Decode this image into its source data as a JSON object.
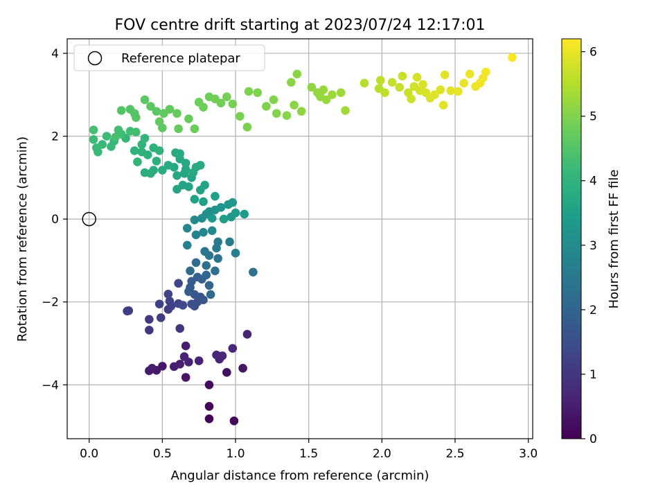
{
  "chart_data": {
    "type": "scatter",
    "title": "FOV centre drift starting at 2023/07/24 12:17:01",
    "xlabel": "Angular distance from reference (arcmin)",
    "ylabel": "Rotation from reference (arcmin)",
    "xlim": [
      -0.15,
      3.03
    ],
    "ylim": [
      -5.3,
      4.35
    ],
    "xticks": [
      0.0,
      0.5,
      1.0,
      1.5,
      2.0,
      2.5,
      3.0
    ],
    "xtick_labels": [
      "0.0",
      "0.5",
      "1.0",
      "1.5",
      "2.0",
      "2.5",
      "3.0"
    ],
    "yticks": [
      -4,
      -2,
      0,
      2,
      4
    ],
    "ytick_labels": [
      "−4",
      "−2",
      "0",
      "2",
      "4"
    ],
    "grid": true,
    "legend": {
      "placement": "top-left",
      "entries": [
        "Reference platepar"
      ]
    },
    "reference_point": {
      "x": 0.0,
      "y": 0.0
    },
    "colorbar": {
      "label": "Hours from first FF file",
      "range": [
        0,
        6.2
      ],
      "ticks": [
        0,
        1,
        2,
        3,
        4,
        5,
        6
      ],
      "tick_labels": [
        "0",
        "1",
        "2",
        "3",
        "4",
        "5",
        "6"
      ],
      "colormap": "viridis"
    },
    "colormap_stops": [
      "#440154",
      "#482878",
      "#3e4989",
      "#31688e",
      "#26828e",
      "#1f9e89",
      "#35b779",
      "#6ece58",
      "#b5de2b",
      "#fde725"
    ],
    "points": [
      [
        0.82,
        -4.82,
        0.05
      ],
      [
        0.82,
        -4.52,
        0.08
      ],
      [
        0.99,
        -4.87,
        0.12
      ],
      [
        0.82,
        -4.0,
        0.2
      ],
      [
        0.94,
        -3.7,
        0.25
      ],
      [
        1.05,
        -3.6,
        0.3
      ],
      [
        0.66,
        -3.82,
        0.35
      ],
      [
        0.5,
        -3.55,
        0.4
      ],
      [
        0.46,
        -3.65,
        0.42
      ],
      [
        0.41,
        -3.66,
        0.45
      ],
      [
        0.43,
        -3.6,
        0.5
      ],
      [
        0.58,
        -3.56,
        0.5
      ],
      [
        0.62,
        -3.5,
        0.55
      ],
      [
        0.68,
        -3.45,
        0.58
      ],
      [
        0.75,
        -3.42,
        0.6
      ],
      [
        0.65,
        -3.32,
        0.62
      ],
      [
        0.89,
        -3.38,
        0.65
      ],
      [
        0.87,
        -3.28,
        0.68
      ],
      [
        0.91,
        -3.3,
        0.7
      ],
      [
        0.98,
        -3.12,
        0.72
      ],
      [
        1.08,
        -2.78,
        0.6
      ],
      [
        0.66,
        -3.06,
        0.5
      ],
      [
        0.41,
        -2.68,
        1.0
      ],
      [
        0.62,
        -2.64,
        1.0
      ],
      [
        0.41,
        -2.42,
        1.05
      ],
      [
        0.49,
        -2.38,
        1.1
      ],
      [
        0.26,
        -2.22,
        1.1
      ],
      [
        0.27,
        -2.21,
        1.12
      ],
      [
        0.54,
        -2.18,
        1.15
      ],
      [
        0.56,
        -2.1,
        1.2
      ],
      [
        0.48,
        -2.05,
        1.22
      ],
      [
        0.55,
        -1.98,
        1.25
      ],
      [
        0.61,
        -2.04,
        1.3
      ],
      [
        0.54,
        -1.81,
        1.3
      ],
      [
        0.61,
        -1.55,
        1.35
      ],
      [
        0.64,
        -2.08,
        1.4
      ],
      [
        0.7,
        -2.05,
        1.45
      ],
      [
        0.72,
        -2.1,
        1.5
      ],
      [
        0.74,
        -2.0,
        1.55
      ],
      [
        0.76,
        -1.88,
        1.6
      ],
      [
        0.78,
        -1.95,
        1.65
      ],
      [
        0.72,
        -1.82,
        1.7
      ],
      [
        0.69,
        -1.65,
        1.75
      ],
      [
        0.68,
        -1.75,
        1.8
      ],
      [
        0.7,
        -1.5,
        1.85
      ],
      [
        0.74,
        -1.4,
        1.9
      ],
      [
        0.77,
        -1.45,
        1.95
      ],
      [
        0.82,
        -1.6,
        2.0
      ],
      [
        0.8,
        -1.35,
        2.05
      ],
      [
        0.83,
        -1.82,
        2.1
      ],
      [
        0.69,
        -1.25,
        2.15
      ],
      [
        0.73,
        -1.05,
        2.2
      ],
      [
        0.8,
        -1.12,
        2.25
      ],
      [
        0.86,
        -1.25,
        2.3
      ],
      [
        0.88,
        -0.95,
        2.35
      ],
      [
        0.79,
        -0.78,
        2.4
      ],
      [
        0.82,
        -0.88,
        2.45
      ],
      [
        0.87,
        -0.7,
        2.5
      ],
      [
        0.88,
        -0.55,
        2.55
      ],
      [
        0.96,
        -0.55,
        2.6
      ],
      [
        1.0,
        -0.82,
        2.65
      ],
      [
        1.12,
        -1.28,
        2.3
      ],
      [
        0.67,
        -0.63,
        2.7
      ],
      [
        0.73,
        -0.38,
        2.75
      ],
      [
        0.67,
        -0.22,
        2.8
      ],
      [
        0.78,
        -0.32,
        2.85
      ],
      [
        0.84,
        -0.28,
        2.9
      ],
      [
        0.72,
        -0.02,
        2.95
      ],
      [
        0.77,
        0.02,
        3.0
      ],
      [
        0.8,
        0.12,
        3.05
      ],
      [
        0.82,
        0.18,
        3.1
      ],
      [
        0.86,
        0.22,
        3.15
      ],
      [
        0.9,
        0.28,
        3.2
      ],
      [
        0.95,
        0.35,
        3.25
      ],
      [
        0.98,
        0.4,
        3.3
      ],
      [
        0.97,
        0.05,
        3.3
      ],
      [
        1.0,
        0.15,
        3.35
      ],
      [
        1.06,
        0.12,
        3.4
      ],
      [
        0.84,
        0.02,
        3.4
      ],
      [
        0.92,
        0.0,
        3.45
      ],
      [
        0.78,
        0.42,
        3.5
      ],
      [
        0.86,
        0.55,
        3.5
      ],
      [
        0.72,
        0.48,
        3.55
      ],
      [
        0.76,
        0.7,
        3.55
      ],
      [
        0.79,
        0.82,
        3.6
      ],
      [
        0.68,
        0.78,
        3.6
      ],
      [
        0.7,
        1.0,
        3.62
      ],
      [
        0.64,
        0.82,
        3.62
      ],
      [
        0.6,
        0.72,
        3.64
      ],
      [
        0.65,
        1.1,
        3.65
      ],
      [
        0.66,
        1.2,
        3.66
      ],
      [
        0.6,
        1.05,
        3.68
      ],
      [
        0.58,
        1.25,
        3.7
      ],
      [
        0.62,
        1.45,
        3.7
      ],
      [
        0.66,
        1.35,
        3.72
      ],
      [
        0.73,
        1.25,
        3.74
      ],
      [
        0.76,
        1.3,
        3.75
      ],
      [
        0.71,
        1.12,
        3.76
      ],
      [
        0.59,
        1.6,
        3.78
      ],
      [
        0.62,
        1.58,
        3.8
      ],
      [
        0.54,
        1.3,
        3.8
      ],
      [
        0.5,
        1.18,
        3.82
      ],
      [
        0.44,
        1.18,
        3.84
      ],
      [
        0.38,
        1.12,
        3.86
      ],
      [
        0.42,
        1.1,
        3.88
      ],
      [
        0.46,
        1.4,
        3.9
      ],
      [
        0.4,
        1.55,
        3.92
      ],
      [
        0.36,
        1.62,
        3.94
      ],
      [
        0.44,
        1.72,
        3.96
      ],
      [
        0.48,
        1.65,
        3.98
      ],
      [
        0.31,
        1.65,
        4.0
      ],
      [
        0.36,
        1.8,
        4.02
      ],
      [
        0.33,
        1.38,
        4.04
      ],
      [
        0.38,
        1.95,
        4.06
      ],
      [
        0.25,
        1.95,
        4.1
      ],
      [
        0.15,
        1.75,
        4.12
      ],
      [
        0.17,
        1.88,
        4.14
      ],
      [
        0.09,
        1.8,
        4.16
      ],
      [
        0.05,
        1.72,
        4.18
      ],
      [
        0.06,
        1.62,
        4.2
      ],
      [
        0.03,
        1.92,
        4.22
      ],
      [
        0.12,
        2.0,
        4.24
      ],
      [
        0.22,
        2.05,
        4.26
      ],
      [
        0.28,
        2.12,
        4.28
      ],
      [
        0.2,
        2.15,
        4.3
      ],
      [
        0.32,
        2.1,
        4.32
      ],
      [
        0.03,
        2.15,
        4.34
      ],
      [
        0.18,
        1.98,
        4.36
      ],
      [
        0.22,
        2.62,
        4.5
      ],
      [
        0.28,
        2.65,
        4.52
      ],
      [
        0.31,
        2.55,
        4.54
      ],
      [
        0.32,
        2.45,
        4.56
      ],
      [
        0.38,
        2.88,
        4.58
      ],
      [
        0.42,
        2.72,
        4.6
      ],
      [
        0.46,
        2.6,
        4.62
      ],
      [
        0.51,
        2.55,
        4.64
      ],
      [
        0.48,
        2.35,
        4.66
      ],
      [
        0.55,
        2.65,
        4.68
      ],
      [
        0.6,
        2.55,
        4.7
      ],
      [
        0.61,
        2.18,
        4.72
      ],
      [
        0.68,
        2.42,
        4.74
      ],
      [
        0.72,
        2.18,
        4.76
      ],
      [
        0.75,
        2.82,
        4.78
      ],
      [
        0.78,
        2.7,
        4.8
      ],
      [
        0.82,
        2.95,
        4.82
      ],
      [
        0.86,
        2.9,
        4.84
      ],
      [
        0.9,
        2.8,
        4.86
      ],
      [
        0.94,
        2.95,
        4.88
      ],
      [
        0.98,
        2.78,
        4.9
      ],
      [
        1.03,
        2.48,
        4.92
      ],
      [
        1.08,
        2.22,
        4.94
      ],
      [
        1.09,
        3.08,
        4.96
      ],
      [
        1.15,
        3.05,
        4.98
      ],
      [
        1.21,
        2.72,
        5.0
      ],
      [
        1.26,
        2.88,
        5.02
      ],
      [
        1.28,
        2.55,
        5.04
      ],
      [
        1.35,
        2.5,
        5.06
      ],
      [
        1.38,
        3.3,
        5.08
      ],
      [
        1.42,
        3.5,
        5.1
      ],
      [
        1.4,
        2.75,
        5.12
      ],
      [
        1.45,
        2.6,
        5.14
      ],
      [
        1.52,
        3.18,
        5.16
      ],
      [
        1.56,
        3.05,
        5.18
      ],
      [
        1.58,
        2.95,
        5.2
      ],
      [
        1.6,
        3.12,
        5.22
      ],
      [
        1.62,
        2.88,
        5.24
      ],
      [
        1.66,
        3.0,
        5.26
      ],
      [
        1.72,
        3.05,
        5.3
      ],
      [
        1.75,
        2.62,
        5.32
      ],
      [
        0.5,
        2.2,
        4.6
      ],
      [
        1.88,
        3.28,
        5.5
      ],
      [
        1.98,
        3.15,
        5.55
      ],
      [
        1.99,
        3.35,
        5.6
      ],
      [
        2.02,
        3.05,
        5.62
      ],
      [
        2.07,
        3.3,
        5.65
      ],
      [
        2.12,
        3.18,
        5.68
      ],
      [
        2.14,
        3.45,
        5.7
      ],
      [
        2.18,
        3.05,
        5.72
      ],
      [
        2.2,
        2.9,
        5.74
      ],
      [
        2.22,
        3.2,
        5.76
      ],
      [
        2.24,
        3.42,
        5.78
      ],
      [
        2.26,
        3.1,
        5.8
      ],
      [
        2.28,
        3.25,
        5.82
      ],
      [
        2.3,
        3.05,
        5.84
      ],
      [
        2.33,
        2.92,
        5.86
      ],
      [
        2.36,
        3.0,
        5.88
      ],
      [
        2.4,
        3.12,
        5.9
      ],
      [
        2.42,
        2.75,
        5.92
      ],
      [
        2.43,
        3.48,
        5.94
      ],
      [
        2.47,
        3.1,
        5.96
      ],
      [
        2.52,
        3.08,
        5.98
      ],
      [
        2.56,
        3.28,
        6.0
      ],
      [
        2.6,
        3.5,
        6.02
      ],
      [
        2.64,
        3.2,
        6.04
      ],
      [
        2.67,
        3.28,
        6.06
      ],
      [
        2.69,
        3.4,
        6.08
      ],
      [
        2.71,
        3.55,
        6.1
      ],
      [
        2.89,
        3.9,
        6.2
      ]
    ]
  }
}
